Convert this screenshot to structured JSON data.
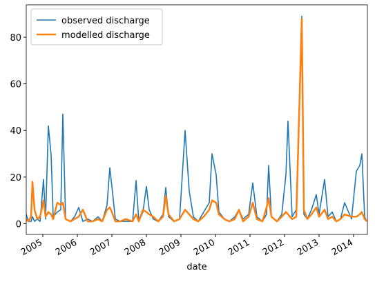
{
  "chart_data": {
    "type": "line",
    "xlabel": "date",
    "x": [
      2004.52,
      2004.58,
      2004.66,
      2004.7,
      2004.76,
      2004.84,
      2004.92,
      2005.02,
      2005.08,
      2005.16,
      2005.24,
      2005.3,
      2005.42,
      2005.52,
      2005.58,
      2005.66,
      2005.8,
      2005.92,
      2006.04,
      2006.16,
      2006.3,
      2006.44,
      2006.6,
      2006.72,
      2006.86,
      2006.94,
      2007.0,
      2007.1,
      2007.24,
      2007.4,
      2007.6,
      2007.7,
      2007.78,
      2007.9,
      2008.0,
      2008.08,
      2008.2,
      2008.34,
      2008.48,
      2008.56,
      2008.64,
      2008.8,
      2008.96,
      2009.12,
      2009.24,
      2009.36,
      2009.5,
      2009.66,
      2009.82,
      2009.9,
      2010.02,
      2010.1,
      2010.26,
      2010.4,
      2010.56,
      2010.68,
      2010.8,
      2010.96,
      2011.08,
      2011.2,
      2011.36,
      2011.48,
      2011.54,
      2011.62,
      2011.78,
      2011.92,
      2012.04,
      2012.1,
      2012.22,
      2012.34,
      2012.5,
      2012.56,
      2012.66,
      2012.78,
      2012.92,
      2013.0,
      2013.16,
      2013.26,
      2013.38,
      2013.5,
      2013.62,
      2013.74,
      2013.94,
      2014.08,
      2014.18,
      2014.24,
      2014.32,
      2014.38
    ],
    "series": [
      {
        "name": "observed discharge",
        "color": "#1f77b4",
        "values": [
          4,
          1,
          1,
          3,
          1,
          2,
          1,
          19,
          2,
          42,
          29.5,
          3,
          5,
          6,
          47,
          2,
          1,
          3,
          7,
          1,
          2,
          1,
          3,
          1,
          8,
          24,
          16,
          2,
          1,
          1,
          1,
          18.5,
          1,
          5,
          16,
          6,
          2,
          1,
          4,
          15.5,
          3,
          1,
          2,
          40,
          14,
          3,
          1,
          5,
          9,
          30,
          21,
          5,
          2,
          1,
          3,
          6,
          2,
          4,
          17.5,
          3,
          1,
          4,
          25,
          3,
          1,
          4,
          21,
          44,
          3,
          6,
          89,
          4,
          2,
          6,
          12.5,
          4,
          19,
          3,
          5,
          1,
          2,
          9,
          2,
          22.5,
          25,
          30,
          3,
          1
        ]
      },
      {
        "name": "modelled discharge",
        "color": "#ff7f0e",
        "values": [
          2,
          1,
          3,
          18,
          6,
          2,
          3,
          10,
          3,
          5,
          4,
          2,
          9,
          8,
          9,
          2,
          1,
          2,
          3,
          6,
          1,
          1,
          2,
          1,
          6,
          7,
          5,
          1,
          1,
          2,
          1,
          4,
          1,
          6,
          5,
          4,
          3,
          1,
          3,
          12,
          4,
          1,
          2,
          6,
          4,
          2,
          1,
          3,
          6,
          10,
          9,
          4,
          2,
          1,
          2,
          6,
          1,
          3,
          9,
          2,
          1,
          7,
          11,
          3,
          1,
          3,
          5,
          4,
          2,
          3,
          88,
          6,
          2,
          4,
          7,
          3,
          6,
          2,
          3,
          1,
          2,
          4,
          3,
          3,
          4,
          5,
          2,
          1
        ]
      }
    ],
    "xlim": [
      2004.52,
      2014.4
    ],
    "xticks": [
      2005,
      2006,
      2007,
      2008,
      2009,
      2010,
      2011,
      2012,
      2013,
      2014
    ],
    "ylim": [
      -4.6,
      93.9
    ],
    "yticks": [
      0,
      20,
      40,
      60,
      80
    ],
    "legend": "upper left"
  }
}
